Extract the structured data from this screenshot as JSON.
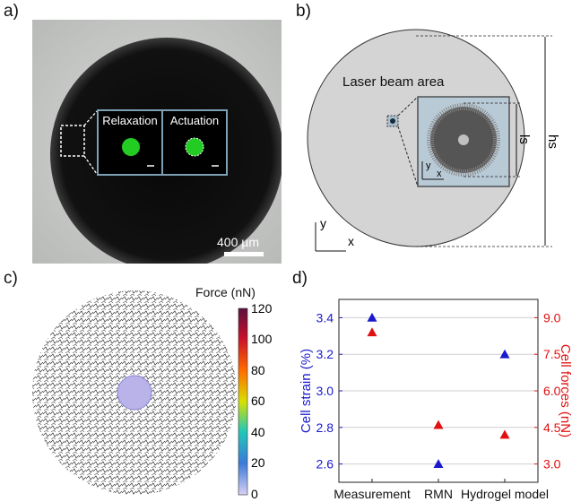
{
  "panels": {
    "a": {
      "label": "a)",
      "inset_left": "Relaxation",
      "inset_right": "Actuation",
      "scalebar": "400 µm"
    },
    "b": {
      "label": "b)",
      "title": "Laser beam area",
      "dim_hs": "hs",
      "dim_ls": "ls",
      "axis_x": "x",
      "axis_y": "y"
    },
    "c": {
      "label": "c)",
      "colorbar_title": "Force (nN)",
      "colorbar_ticks": [
        "120",
        "100",
        "80",
        "60",
        "40",
        "20",
        "0"
      ]
    },
    "d": {
      "label": "d)"
    }
  },
  "chart_data": {
    "type": "scatter",
    "categories": [
      "Measurement",
      "RMN",
      "Hydrogel model"
    ],
    "ylabel_left": "Cell strain (%)",
    "ylabel_right": "Cell forces (nN)",
    "ylim_left": [
      2.5,
      3.5
    ],
    "ylim_right": [
      2.25,
      9.75
    ],
    "yticks_left": [
      "3.4",
      "3.2",
      "3.0",
      "2.8",
      "2.6"
    ],
    "yticks_right": [
      "9.0",
      "7.5",
      "6.0",
      "4.5",
      "3.0"
    ],
    "grid": true,
    "series": [
      {
        "axis": "left",
        "color": "#1a1acc",
        "marker": "triangle",
        "values": [
          3.4,
          2.6,
          3.2
        ]
      },
      {
        "axis": "right",
        "color": "#e01010",
        "marker": "triangle",
        "values": [
          8.4,
          4.6,
          4.2
        ]
      }
    ]
  }
}
